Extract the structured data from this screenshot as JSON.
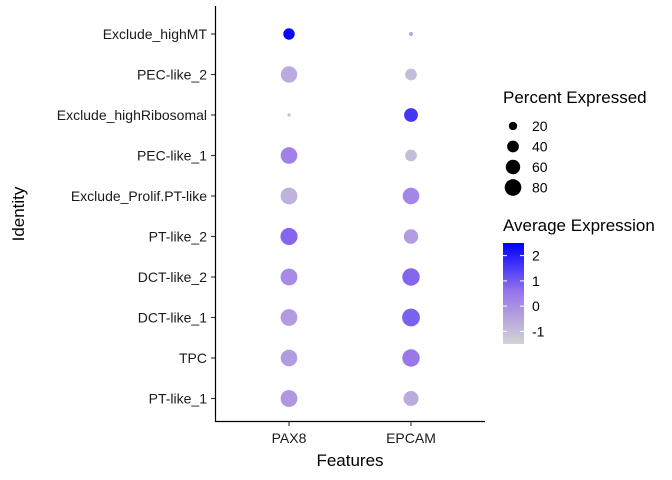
{
  "chart_data": {
    "type": "dot",
    "xlabel": "Features",
    "ylabel": "Identity",
    "features": [
      "PAX8",
      "EPCAM"
    ],
    "identities": [
      "Exclude_highMT",
      "PEC-like_2",
      "Exclude_highRibosomal",
      "PEC-like_1",
      "Exclude_Prolif.PT-like",
      "PT-like_2",
      "DCT-like_2",
      "DCT-like_1",
      "TPC",
      "PT-like_1"
    ],
    "points": [
      {
        "identity": "Exclude_highMT",
        "feature": "PAX8",
        "pct_exp": 38,
        "avg_exp": 2.4
      },
      {
        "identity": "Exclude_highMT",
        "feature": "EPCAM",
        "pct_exp": 5,
        "avg_exp": -0.5
      },
      {
        "identity": "PEC-like_2",
        "feature": "PAX8",
        "pct_exp": 78,
        "avg_exp": -0.6
      },
      {
        "identity": "PEC-like_2",
        "feature": "EPCAM",
        "pct_exp": 40,
        "avg_exp": -1.0
      },
      {
        "identity": "Exclude_highRibosomal",
        "feature": "PAX8",
        "pct_exp": 3,
        "avg_exp": -1.0
      },
      {
        "identity": "Exclude_highRibosomal",
        "feature": "EPCAM",
        "pct_exp": 55,
        "avg_exp": 1.6
      },
      {
        "identity": "PEC-like_1",
        "feature": "PAX8",
        "pct_exp": 80,
        "avg_exp": 0.3
      },
      {
        "identity": "PEC-like_1",
        "feature": "EPCAM",
        "pct_exp": 40,
        "avg_exp": -1.0
      },
      {
        "identity": "Exclude_Prolif.PT-like",
        "feature": "PAX8",
        "pct_exp": 82,
        "avg_exp": -0.8
      },
      {
        "identity": "Exclude_Prolif.PT-like",
        "feature": "EPCAM",
        "pct_exp": 80,
        "avg_exp": 0.2
      },
      {
        "identity": "PT-like_2",
        "feature": "PAX8",
        "pct_exp": 85,
        "avg_exp": 0.8
      },
      {
        "identity": "PT-like_2",
        "feature": "EPCAM",
        "pct_exp": 60,
        "avg_exp": -0.3
      },
      {
        "identity": "DCT-like_2",
        "feature": "PAX8",
        "pct_exp": 82,
        "avg_exp": 0.1
      },
      {
        "identity": "DCT-like_2",
        "feature": "EPCAM",
        "pct_exp": 88,
        "avg_exp": 0.8
      },
      {
        "identity": "DCT-like_1",
        "feature": "PAX8",
        "pct_exp": 82,
        "avg_exp": -0.3
      },
      {
        "identity": "DCT-like_1",
        "feature": "EPCAM",
        "pct_exp": 92,
        "avg_exp": 0.9
      },
      {
        "identity": "TPC",
        "feature": "PAX8",
        "pct_exp": 80,
        "avg_exp": -0.3
      },
      {
        "identity": "TPC",
        "feature": "EPCAM",
        "pct_exp": 88,
        "avg_exp": 0.5
      },
      {
        "identity": "PT-like_1",
        "feature": "PAX8",
        "pct_exp": 82,
        "avg_exp": -0.2
      },
      {
        "identity": "PT-like_1",
        "feature": "EPCAM",
        "pct_exp": 65,
        "avg_exp": -0.6
      }
    ],
    "size_legend": {
      "title": "Percent Expressed",
      "values": [
        20,
        40,
        60,
        80
      ],
      "labels": [
        "20",
        "40",
        "60",
        "80"
      ]
    },
    "color_legend": {
      "title": "Average Expression",
      "range": [
        -1.5,
        2.5
      ],
      "ticks": [
        2,
        1,
        0,
        -1
      ],
      "tick_labels": [
        "2",
        "1",
        "0",
        "-1"
      ],
      "low_color": "#d3d3d3",
      "high_color": "#0000ff"
    }
  }
}
